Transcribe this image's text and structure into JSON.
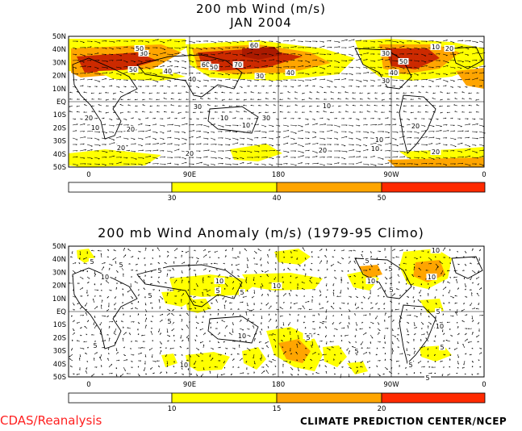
{
  "top_panel": {
    "title_line1": "200 mb Wind (m/s)",
    "title_line2": "JAN 2004",
    "lat_labels": [
      "50N",
      "40N",
      "30N",
      "20N",
      "10N",
      "EQ",
      "10S",
      "20S",
      "30S",
      "40S",
      "50S"
    ],
    "lon_labels": [
      "0",
      "90E",
      "180",
      "90W",
      "0"
    ],
    "colorbar_ticks": [
      "30",
      "40",
      "50"
    ],
    "colorbar_colors": [
      "#ffffff",
      "#ffff00",
      "#ffa500",
      "#ff2a00"
    ],
    "contour_labels": [
      "50",
      "40",
      "30",
      "50",
      "40",
      "30",
      "20",
      "20",
      "10",
      "10",
      "10",
      "10",
      "20",
      "30",
      "60",
      "70",
      "60",
      "50",
      "40",
      "30",
      "20",
      "10",
      "10",
      "20",
      "30",
      "10",
      "20",
      "50",
      "40",
      "30",
      "20",
      "20"
    ]
  },
  "bottom_panel": {
    "title": "200 mb Wind Anomaly (m/s) (1979-95 Climo)",
    "lat_labels": [
      "50N",
      "40N",
      "30N",
      "20N",
      "10N",
      "EQ",
      "10S",
      "20S",
      "30S",
      "40S",
      "50S"
    ],
    "lon_labels": [
      "0",
      "90E",
      "180",
      "90W",
      "0"
    ],
    "colorbar_ticks": [
      "10",
      "15",
      "20"
    ],
    "colorbar_colors": [
      "#ffffff",
      "#ffff00",
      "#ffa500",
      "#ff2a00"
    ],
    "contour_labels": [
      "5",
      "5",
      "5",
      "10",
      "5",
      "10",
      "5",
      "10",
      "10",
      "5",
      "5",
      "10",
      "5",
      "5",
      "10",
      "5",
      "10",
      "5",
      "10",
      "10",
      "5",
      "5",
      "5",
      "5",
      "5",
      "5",
      "10"
    ]
  },
  "footer": {
    "left": "CDAS/Reanalysis",
    "right": "CLIMATE PREDICTION CENTER/NCEP"
  }
}
